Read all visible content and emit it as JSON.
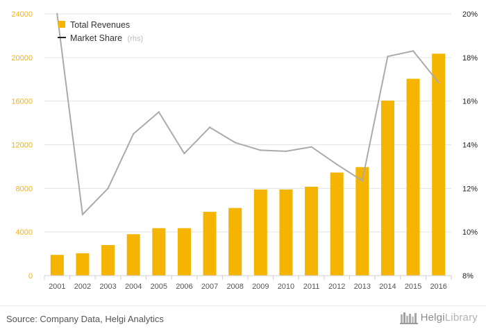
{
  "chart_data": {
    "type": "bar+line",
    "categories": [
      "2001",
      "2002",
      "2003",
      "2004",
      "2005",
      "2006",
      "2007",
      "2008",
      "2009",
      "2010",
      "2011",
      "2012",
      "2013",
      "2014",
      "2015",
      "2016"
    ],
    "series": [
      {
        "name": "Total Revenues",
        "type": "bar",
        "axis": "left",
        "color": "#f5b400",
        "values": [
          1900,
          2050,
          2800,
          3800,
          4350,
          4350,
          5850,
          6200,
          7900,
          7900,
          8150,
          9450,
          9950,
          16050,
          18050,
          20350
        ]
      },
      {
        "name": "Market Share",
        "name_suffix": "(rhs)",
        "type": "line",
        "axis": "right",
        "color": "#aaaaaa",
        "values": [
          20.0,
          10.8,
          12.0,
          14.5,
          15.5,
          13.6,
          14.8,
          14.1,
          13.75,
          13.7,
          13.9,
          13.1,
          12.35,
          18.05,
          18.3,
          16.85
        ]
      }
    ],
    "y_left": {
      "min": 0,
      "max": 24000,
      "ticks": [
        "0",
        "4000",
        "8000",
        "12000",
        "16000",
        "20000",
        "24000"
      ],
      "tick_values": [
        0,
        4000,
        8000,
        12000,
        16000,
        20000,
        24000
      ]
    },
    "y_right": {
      "min": 8,
      "max": 20,
      "ticks": [
        "8%",
        "10%",
        "12%",
        "14%",
        "16%",
        "18%",
        "20%"
      ],
      "tick_values": [
        8,
        10,
        12,
        14,
        16,
        18,
        20
      ]
    },
    "grid": "horizontal",
    "legend_position": "top-left"
  },
  "footer": {
    "source": "Source: Company Data, Helgi Analytics",
    "brand_part1": "Helgi",
    "brand_part2": "Library"
  }
}
